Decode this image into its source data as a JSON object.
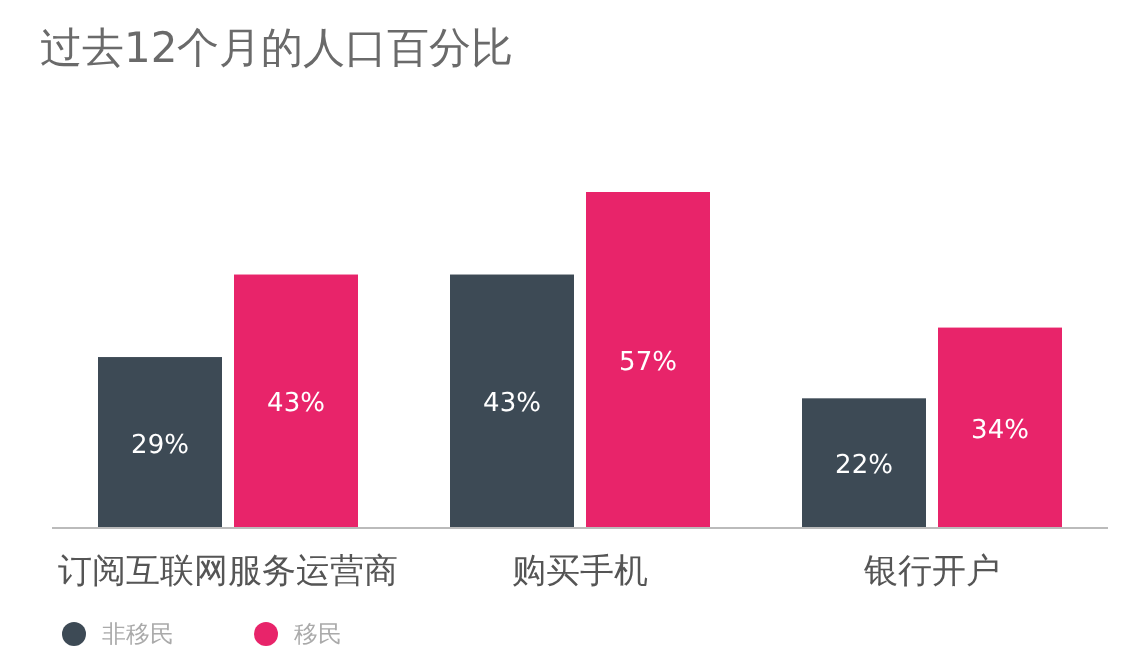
{
  "chart_data": {
    "type": "bar",
    "title": "过去12个月的人口百分比",
    "categories": [
      "订阅互联网服务运营商",
      "购买手机",
      "银行开户"
    ],
    "series": [
      {
        "name": "非移民",
        "color": "#3d4a55",
        "values": [
          29,
          43,
          22
        ],
        "value_labels": [
          "29%",
          "43%",
          "22%"
        ]
      },
      {
        "name": "移民",
        "color": "#e8246a",
        "values": [
          43,
          57,
          34
        ],
        "value_labels": [
          "43%",
          "57%",
          "34%"
        ]
      }
    ],
    "tick_labels": "x",
    "legend": "bottom left"
  }
}
